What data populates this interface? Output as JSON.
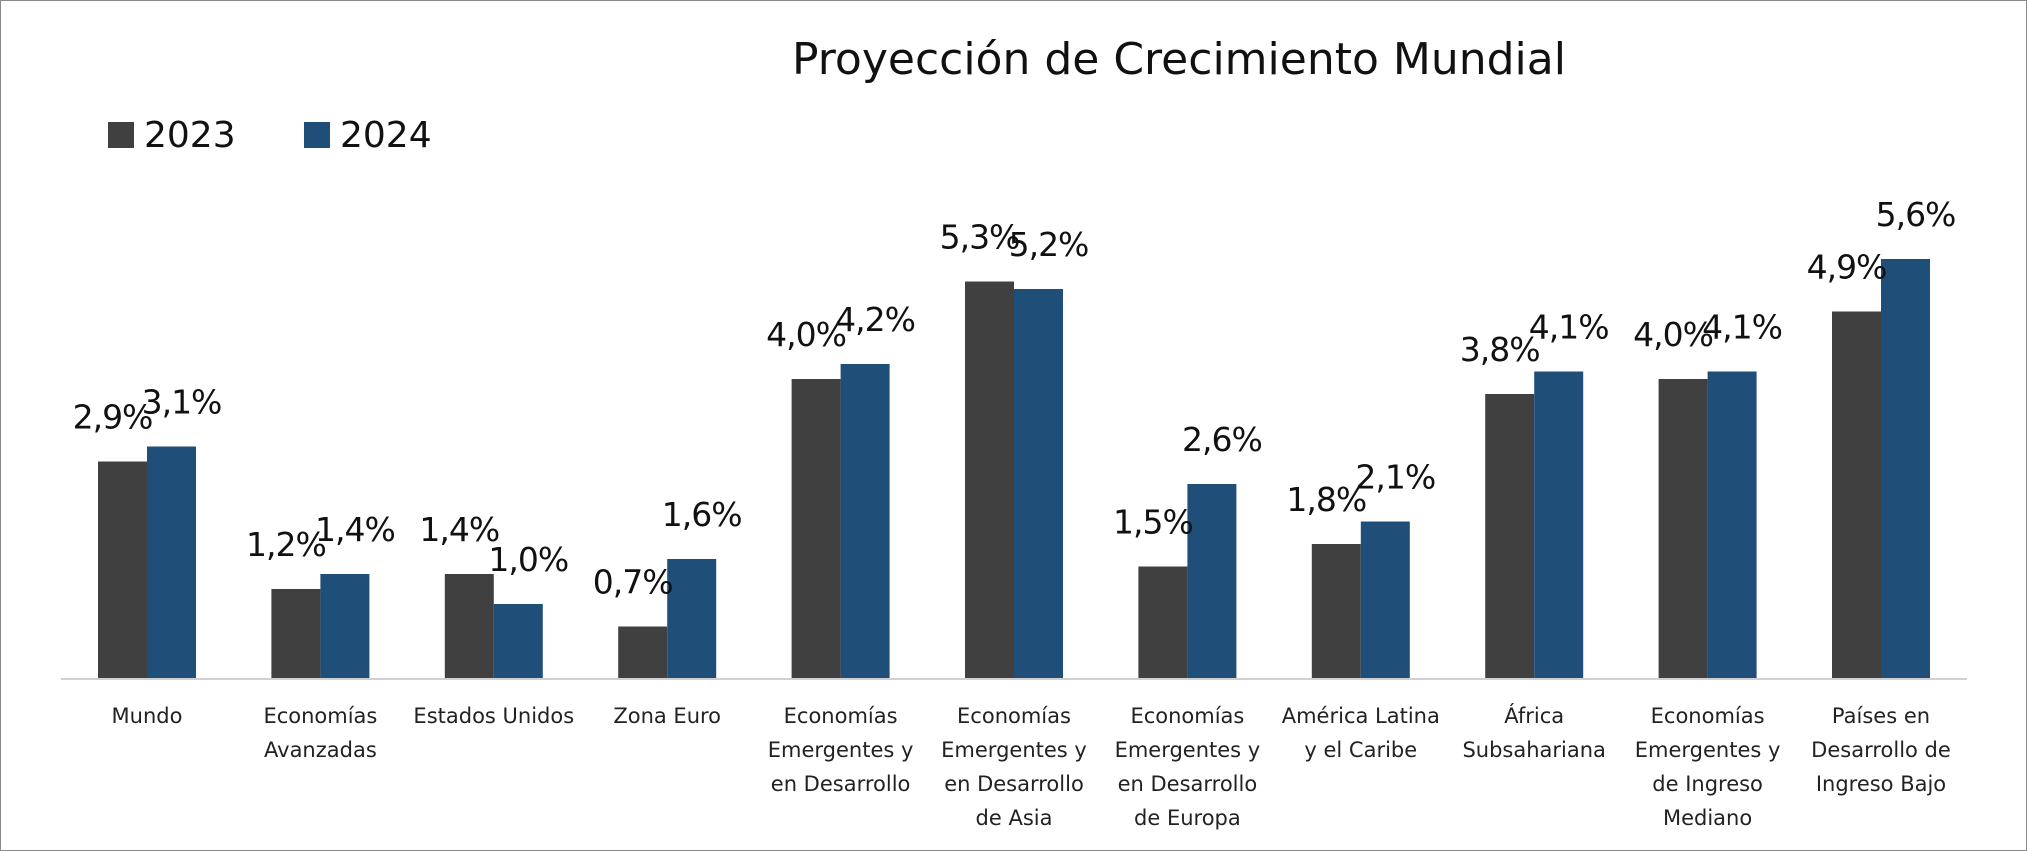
{
  "chart_data": {
    "type": "bar",
    "title": "Proyección de Crecimiento Mundial",
    "legend_position": "top-left",
    "grid": false,
    "ylim": [
      0,
      6.4
    ],
    "categories": [
      "Mundo",
      "Economías Avanzadas",
      "Estados Unidos",
      "Zona Euro",
      "Economías Emergentes y en Desarrollo",
      "Economías Emergentes y en Desarrollo de Asia",
      "Economías Emergentes y en Desarrollo de Europa",
      "América Latina y el Caribe",
      "África Subsahariana",
      "Economías Emergentes y de Ingreso Mediano",
      "Países en Desarrollo de Ingreso Bajo"
    ],
    "category_lines": [
      [
        "Mundo"
      ],
      [
        "Economías",
        "Avanzadas"
      ],
      [
        "Estados Unidos"
      ],
      [
        "Zona Euro"
      ],
      [
        "Economías",
        "Emergentes y",
        "en Desarrollo"
      ],
      [
        "Economías",
        "Emergentes y",
        "en Desarrollo",
        "de Asia"
      ],
      [
        "Economías",
        "Emergentes y",
        "en Desarrollo",
        "de Europa"
      ],
      [
        "América Latina",
        "y el Caribe"
      ],
      [
        "África",
        "Subsahariana"
      ],
      [
        "Economías",
        "Emergentes y",
        "de Ingreso",
        "Mediano"
      ],
      [
        "Países en",
        "Desarrollo de",
        "Ingreso Bajo"
      ]
    ],
    "series": [
      {
        "name": "2023",
        "color": "#404040",
        "values": [
          2.9,
          1.2,
          1.4,
          0.7,
          4.0,
          5.3,
          1.5,
          1.8,
          3.8,
          4.0,
          4.9
        ],
        "labels": [
          "2,9%",
          "1,2%",
          "1,4%",
          "0,7%",
          "4,0%",
          "5,3%",
          "1,5%",
          "1,8%",
          "3,8%",
          "4,0%",
          "4,9%"
        ]
      },
      {
        "name": "2024",
        "color": "#1f4e79",
        "values": [
          3.1,
          1.4,
          1.0,
          1.6,
          4.2,
          5.2,
          2.6,
          2.1,
          4.1,
          4.1,
          5.6
        ],
        "labels": [
          "3,1%",
          "1,4%",
          "1,0%",
          "1,6%",
          "4,2%",
          "5,2%",
          "2,6%",
          "2,1%",
          "4,1%",
          "4,1%",
          "5,6%"
        ]
      }
    ]
  }
}
